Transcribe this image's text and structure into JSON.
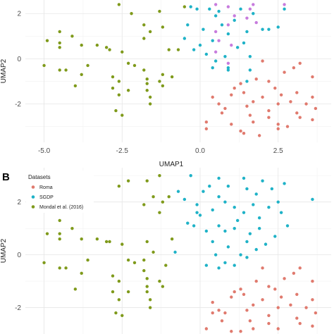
{
  "chart_data": [
    {
      "type": "scatter",
      "panel": "",
      "xlabel": "UMAP1",
      "ylabel": "UMAP2",
      "xlim": [
        -5.6,
        4.2
      ],
      "ylim": [
        -3.7,
        2.6
      ],
      "xticks": [
        -5.0,
        -2.5,
        0.0,
        2.5
      ],
      "xtick_labels": [
        "-5.0",
        "-2.5",
        "0.0",
        "2.5"
      ],
      "yticks": [
        2,
        0,
        -2
      ],
      "ytick_labels": [
        "2",
        "0",
        "-2"
      ],
      "grid": true,
      "series": [
        {
          "color": "#7f9a1b",
          "points": [
            [
              -2.6,
              2.4
            ],
            [
              -1.3,
              2.1
            ],
            [
              -2.2,
              2.0
            ],
            [
              -0.5,
              2.3
            ],
            [
              -1.8,
              1.5
            ],
            [
              -1.6,
              1.2
            ],
            [
              -1.8,
              0.9
            ],
            [
              -1.2,
              1.4
            ],
            [
              -4.5,
              1.2
            ],
            [
              -4.1,
              1.0
            ],
            [
              -4.9,
              0.8
            ],
            [
              -4.5,
              0.7
            ],
            [
              -4.5,
              0.5
            ],
            [
              -3.8,
              0.6
            ],
            [
              -3.3,
              0.6
            ],
            [
              -3.0,
              0.5
            ],
            [
              -2.9,
              0.4
            ],
            [
              -2.5,
              0.3
            ],
            [
              -1.0,
              0.4
            ],
            [
              -0.7,
              0.4
            ],
            [
              -5.0,
              -0.3
            ],
            [
              -3.6,
              -0.3
            ],
            [
              -4.3,
              -0.5
            ],
            [
              -4.5,
              -0.5
            ],
            [
              -3.8,
              -0.7
            ],
            [
              -2.3,
              -0.2
            ],
            [
              -2.1,
              -0.3
            ],
            [
              -1.8,
              -0.5
            ],
            [
              -1.7,
              -0.9
            ],
            [
              -1.2,
              -0.7
            ],
            [
              -0.9,
              -0.8
            ],
            [
              -2.8,
              -0.8
            ],
            [
              -1.7,
              -1.1
            ],
            [
              -1.2,
              -1.2
            ],
            [
              -4.0,
              -1.2
            ],
            [
              -2.8,
              -1.3
            ],
            [
              -2.6,
              -1.6
            ],
            [
              -1.6,
              -1.7
            ],
            [
              -1.6,
              -2.0
            ],
            [
              -2.3,
              -1.4
            ],
            [
              -1.7,
              -1.4
            ],
            [
              -2.7,
              -2.3
            ],
            [
              -2.5,
              -2.5
            ],
            [
              -2.6,
              -1.0
            ],
            [
              -1.3,
              -1.0
            ]
          ]
        },
        {
          "color": "#1fb2c7",
          "points": [
            [
              -0.3,
              2.3
            ],
            [
              -0.1,
              2.2
            ],
            [
              0.3,
              2.2
            ],
            [
              0.6,
              2.1
            ],
            [
              1.3,
              2.2
            ],
            [
              1.7,
              2.0
            ],
            [
              2.7,
              2.2
            ],
            [
              0.5,
              1.9
            ],
            [
              -0.4,
              1.5
            ],
            [
              0.7,
              1.5
            ],
            [
              1.1,
              1.7
            ],
            [
              2.0,
              1.3
            ],
            [
              0.1,
              1.3
            ],
            [
              0.9,
              1.1
            ],
            [
              1.5,
              1.2
            ],
            [
              2.2,
              1.3
            ],
            [
              2.5,
              1.4
            ],
            [
              -0.5,
              0.9
            ],
            [
              0.4,
              0.8
            ],
            [
              1.4,
              0.7
            ],
            [
              0.0,
              0.6
            ],
            [
              1.2,
              0.5
            ],
            [
              -0.2,
              0.4
            ],
            [
              0.2,
              0.2
            ],
            [
              0.8,
              0.1
            ],
            [
              1.6,
              0.1
            ],
            [
              0.5,
              -0.1
            ],
            [
              0.4,
              -0.4
            ],
            [
              0.9,
              -0.4
            ],
            [
              1.6,
              -0.5
            ],
            [
              1.5,
              -1.0
            ],
            [
              0.9,
              -0.5
            ]
          ]
        },
        {
          "color": "#c77cdd",
          "points": [
            [
              0.5,
              2.4
            ],
            [
              0.9,
              2.3
            ],
            [
              1.6,
              2.2
            ],
            [
              1.7,
              2.4
            ],
            [
              2.7,
              2.4
            ],
            [
              1.1,
              1.9
            ],
            [
              1.5,
              1.8
            ],
            [
              1.8,
              1.6
            ],
            [
              0.9,
              1.5
            ],
            [
              0.5,
              1.2
            ],
            [
              0.6,
              0.8
            ],
            [
              1.0,
              0.6
            ],
            [
              0.9,
              -0.2
            ],
            [
              0.5,
              0.3
            ]
          ]
        },
        {
          "color": "#e07a6e",
          "points": [
            [
              2.0,
              -0.1
            ],
            [
              3.2,
              -0.2
            ],
            [
              3.0,
              -0.4
            ],
            [
              2.7,
              -0.6
            ],
            [
              1.8,
              -0.9
            ],
            [
              3.6,
              -0.8
            ],
            [
              2.2,
              -1.0
            ],
            [
              1.3,
              -1.1
            ],
            [
              2.4,
              -1.3
            ],
            [
              3.1,
              -1.5
            ],
            [
              1.4,
              -1.5
            ],
            [
              1.1,
              -1.3
            ],
            [
              2.6,
              -1.6
            ],
            [
              3.6,
              -1.7
            ],
            [
              2.0,
              -1.7
            ],
            [
              1.0,
              -1.6
            ],
            [
              0.4,
              -1.7
            ],
            [
              1.7,
              -1.9
            ],
            [
              2.5,
              -2.0
            ],
            [
              2.9,
              -1.9
            ],
            [
              3.4,
              -2.0
            ],
            [
              0.6,
              -2.0
            ],
            [
              1.5,
              -2.1
            ],
            [
              0.8,
              -2.2
            ],
            [
              2.2,
              -2.3
            ],
            [
              3.1,
              -2.4
            ],
            [
              0.7,
              -2.4
            ],
            [
              3.7,
              -2.2
            ],
            [
              3.2,
              -2.6
            ],
            [
              1.6,
              -2.5
            ],
            [
              2.2,
              -2.6
            ],
            [
              2.5,
              -2.9
            ],
            [
              3.6,
              -2.7
            ],
            [
              0.2,
              -2.8
            ],
            [
              1.0,
              -2.9
            ],
            [
              1.7,
              -2.8
            ],
            [
              2.5,
              -3.1
            ],
            [
              1.3,
              -3.2
            ],
            [
              1.4,
              -3.3
            ],
            [
              1.9,
              -3.4
            ],
            [
              0.2,
              -3.1
            ],
            [
              2.8,
              -3.0
            ]
          ]
        }
      ]
    },
    {
      "type": "scatter",
      "panel": "B",
      "xlabel": "",
      "ylabel": "UMAP2",
      "xlim": [
        -5.6,
        4.2
      ],
      "ylim": [
        -3.0,
        3.3
      ],
      "yticks": [
        2,
        0,
        -2
      ],
      "ytick_labels": [
        "2",
        "0",
        "-2"
      ],
      "grid": true,
      "legend": {
        "title": "Datasets",
        "placement": "top-left",
        "entries": [
          "Roma",
          "SGDP",
          "Mondal et al. (2016)"
        ]
      },
      "series": [
        {
          "name": "Roma",
          "color": "#e07a6e",
          "points": [
            [
              2.0,
              -0.5
            ],
            [
              3.2,
              -0.5
            ],
            [
              3.0,
              -0.7
            ],
            [
              2.7,
              -0.9
            ],
            [
              1.8,
              -1.0
            ],
            [
              3.6,
              -1.0
            ],
            [
              2.2,
              -1.2
            ],
            [
              1.3,
              -1.3
            ],
            [
              2.4,
              -1.3
            ],
            [
              3.1,
              -1.5
            ],
            [
              1.4,
              -1.5
            ],
            [
              1.1,
              -1.4
            ],
            [
              2.6,
              -1.6
            ],
            [
              3.6,
              -1.7
            ],
            [
              2.0,
              -1.7
            ],
            [
              1.0,
              -1.6
            ],
            [
              0.4,
              -1.8
            ],
            [
              1.7,
              -1.9
            ],
            [
              2.5,
              -2.0
            ],
            [
              2.9,
              -1.9
            ],
            [
              3.4,
              -2.0
            ],
            [
              0.6,
              -2.1
            ],
            [
              1.5,
              -2.1
            ],
            [
              0.8,
              -2.2
            ],
            [
              2.2,
              -2.3
            ],
            [
              3.1,
              -2.4
            ],
            [
              0.7,
              -2.5
            ],
            [
              3.7,
              -2.2
            ],
            [
              3.2,
              -2.6
            ],
            [
              1.6,
              -2.5
            ],
            [
              2.2,
              -2.6
            ],
            [
              2.5,
              -2.8
            ],
            [
              3.6,
              -2.7
            ],
            [
              0.2,
              -2.8
            ],
            [
              1.0,
              -2.9
            ],
            [
              1.7,
              -2.8
            ],
            [
              1.3,
              -2.9
            ],
            [
              0.4,
              -2.2
            ]
          ]
        },
        {
          "name": "SGDP",
          "color": "#1fb2c7",
          "points": [
            [
              -0.3,
              3.0
            ],
            [
              0.6,
              2.9
            ],
            [
              1.4,
              2.9
            ],
            [
              2.0,
              2.8
            ],
            [
              2.7,
              2.7
            ],
            [
              0.9,
              2.6
            ],
            [
              1.5,
              2.5
            ],
            [
              -0.7,
              2.4
            ],
            [
              0.1,
              2.4
            ],
            [
              0.6,
              2.2
            ],
            [
              1.8,
              2.3
            ],
            [
              -0.5,
              2.1
            ],
            [
              0.8,
              2.0
            ],
            [
              1.1,
              1.8
            ],
            [
              2.2,
              1.8
            ],
            [
              2.5,
              2.0
            ],
            [
              2.6,
              1.6
            ],
            [
              3.6,
              2.1
            ],
            [
              -0.1,
              1.9
            ],
            [
              0.4,
              1.7
            ],
            [
              1.4,
              1.6
            ],
            [
              1.9,
              1.4
            ],
            [
              0.0,
              1.5
            ],
            [
              1.2,
              1.3
            ],
            [
              -0.2,
              1.1
            ],
            [
              0.6,
              1.1
            ],
            [
              1.1,
              1.0
            ],
            [
              0.2,
              0.9
            ],
            [
              0.8,
              0.9
            ],
            [
              1.6,
              0.8
            ],
            [
              2.4,
              0.7
            ],
            [
              0.4,
              0.5
            ],
            [
              1.5,
              0.5
            ],
            [
              1.8,
              0.2
            ],
            [
              0.9,
              0.3
            ],
            [
              -0.4,
              1.2
            ],
            [
              -0.1,
              1.6
            ],
            [
              0.5,
              0.0
            ],
            [
              1.9,
              1.0
            ],
            [
              0.8,
              -0.3
            ],
            [
              1.5,
              -0.1
            ],
            [
              2.1,
              0.4
            ],
            [
              2.8,
              1.1
            ],
            [
              0.2,
              -0.4
            ],
            [
              1.3,
              0.0
            ],
            [
              0.6,
              -0.5
            ],
            [
              1.1,
              -0.4
            ],
            [
              -0.8,
              0.1
            ],
            [
              0.3,
              2.6
            ],
            [
              1.7,
              1.9
            ],
            [
              2.3,
              2.5
            ]
          ]
        },
        {
          "name": "Mondal et al. (2016)",
          "color": "#7f9a1b",
          "points": [
            [
              -2.3,
              2.8
            ],
            [
              -1.3,
              3.0
            ],
            [
              -1.7,
              2.8
            ],
            [
              -2.6,
              2.6
            ],
            [
              -1.5,
              2.2
            ],
            [
              -1.8,
              1.9
            ],
            [
              -1.0,
              2.2
            ],
            [
              -1.2,
              2.0
            ],
            [
              -1.3,
              1.6
            ],
            [
              -4.5,
              1.3
            ],
            [
              -4.1,
              1.0
            ],
            [
              -4.9,
              0.8
            ],
            [
              -4.5,
              0.8
            ],
            [
              -4.5,
              0.6
            ],
            [
              -3.8,
              0.6
            ],
            [
              -3.3,
              0.6
            ],
            [
              -3.0,
              0.5
            ],
            [
              -2.9,
              0.5
            ],
            [
              -2.5,
              0.4
            ],
            [
              -1.7,
              0.5
            ],
            [
              -1.8,
              -0.2
            ],
            [
              -5.0,
              -0.3
            ],
            [
              -3.6,
              -0.2
            ],
            [
              -4.3,
              -0.5
            ],
            [
              -4.5,
              -0.5
            ],
            [
              -3.8,
              -0.7
            ],
            [
              -2.3,
              -0.2
            ],
            [
              -2.1,
              -0.3
            ],
            [
              -1.8,
              -0.6
            ],
            [
              -1.7,
              -0.9
            ],
            [
              -2.8,
              -0.8
            ],
            [
              -1.7,
              -1.2
            ],
            [
              -1.2,
              -1.2
            ],
            [
              -4.0,
              -1.3
            ],
            [
              -2.8,
              -1.4
            ],
            [
              -2.6,
              -1.7
            ],
            [
              -1.6,
              -1.7
            ],
            [
              -1.6,
              -2.0
            ],
            [
              -2.3,
              -1.4
            ],
            [
              -1.7,
              -1.4
            ],
            [
              -2.7,
              -2.2
            ],
            [
              -2.5,
              -2.3
            ],
            [
              -2.6,
              -1.0
            ],
            [
              -1.3,
              -1.0
            ],
            [
              -1.1,
              -0.4
            ],
            [
              -1.5,
              0.1
            ],
            [
              -0.9,
              0.6
            ]
          ]
        }
      ]
    }
  ]
}
